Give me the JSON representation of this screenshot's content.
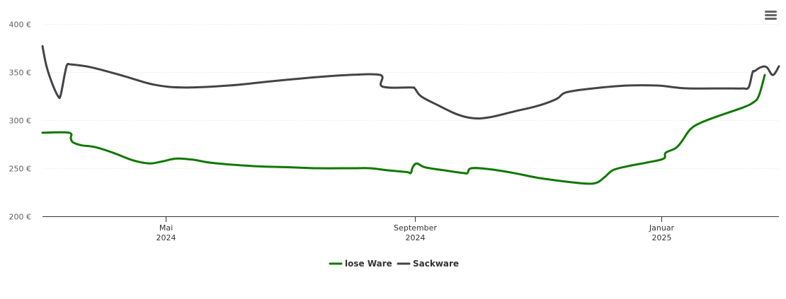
{
  "chart_data": {
    "type": "line",
    "title": "",
    "xlabel": "",
    "ylabel": "",
    "ylim": [
      200,
      400
    ],
    "grid": true,
    "legend_position": "bottom-center",
    "y_ticks": [
      {
        "value": 200,
        "label": "200 €"
      },
      {
        "value": 250,
        "label": "250 €"
      },
      {
        "value": 300,
        "label": "300 €"
      },
      {
        "value": 350,
        "label": "350 €"
      },
      {
        "value": 400,
        "label": "400 €"
      }
    ],
    "x_range": [
      "2024-03-01",
      "2025-02-28"
    ],
    "x_ticks": [
      {
        "date": "2024-05-01",
        "line1": "Mai",
        "line2": "2024"
      },
      {
        "date": "2024-09-01",
        "line1": "September",
        "line2": "2024"
      },
      {
        "date": "2025-01-01",
        "line1": "Januar",
        "line2": "2025"
      }
    ],
    "series": [
      {
        "name": "lose Ware",
        "color": "#107800",
        "points": [
          [
            "2024-03-01",
            287
          ],
          [
            "2024-03-14",
            287
          ],
          [
            "2024-03-15",
            281
          ],
          [
            "2024-03-16",
            277
          ],
          [
            "2024-03-20",
            274
          ],
          [
            "2024-03-27",
            272
          ],
          [
            "2024-04-05",
            266
          ],
          [
            "2024-04-15",
            258
          ],
          [
            "2024-04-23",
            255
          ],
          [
            "2024-04-29",
            257
          ],
          [
            "2024-05-06",
            260
          ],
          [
            "2024-05-14",
            259
          ],
          [
            "2024-05-22",
            256
          ],
          [
            "2024-06-01",
            254
          ],
          [
            "2024-06-15",
            252
          ],
          [
            "2024-07-01",
            251
          ],
          [
            "2024-07-15",
            250
          ],
          [
            "2024-08-01",
            250
          ],
          [
            "2024-08-10",
            250
          ],
          [
            "2024-08-18",
            248
          ],
          [
            "2024-08-28",
            246
          ],
          [
            "2024-08-30",
            245
          ],
          [
            "2024-08-31",
            251
          ],
          [
            "2024-09-02",
            255
          ],
          [
            "2024-09-06",
            251
          ],
          [
            "2024-09-15",
            248
          ],
          [
            "2024-09-25",
            245
          ],
          [
            "2024-09-27",
            245
          ],
          [
            "2024-09-29",
            250
          ],
          [
            "2024-10-08",
            249
          ],
          [
            "2024-10-20",
            245
          ],
          [
            "2024-11-01",
            240
          ],
          [
            "2024-11-15",
            236
          ],
          [
            "2024-11-25",
            234
          ],
          [
            "2024-11-30",
            235
          ],
          [
            "2024-12-04",
            241
          ],
          [
            "2024-12-08",
            248
          ],
          [
            "2024-12-15",
            252
          ],
          [
            "2024-12-25",
            256
          ],
          [
            "2025-01-02",
            260
          ],
          [
            "2025-01-03",
            266
          ],
          [
            "2025-01-08",
            271
          ],
          [
            "2025-01-11",
            278
          ],
          [
            "2025-01-15",
            290
          ],
          [
            "2025-01-20",
            297
          ],
          [
            "2025-01-30",
            305
          ],
          [
            "2025-02-10",
            313
          ],
          [
            "2025-02-15",
            318
          ],
          [
            "2025-02-18",
            325
          ],
          [
            "2025-02-21",
            347
          ]
        ]
      },
      {
        "name": "Sackware",
        "color": "#434348",
        "points": [
          [
            "2024-03-01",
            377
          ],
          [
            "2024-03-03",
            356
          ],
          [
            "2024-03-06",
            337
          ],
          [
            "2024-03-09",
            324
          ],
          [
            "2024-03-10",
            326
          ],
          [
            "2024-03-13",
            357
          ],
          [
            "2024-03-15",
            358
          ],
          [
            "2024-03-25",
            355
          ],
          [
            "2024-04-10",
            346
          ],
          [
            "2024-04-25",
            337
          ],
          [
            "2024-05-10",
            334
          ],
          [
            "2024-06-01",
            336
          ],
          [
            "2024-06-20",
            340
          ],
          [
            "2024-07-10",
            344
          ],
          [
            "2024-07-30",
            347
          ],
          [
            "2024-08-15",
            347
          ],
          [
            "2024-08-16",
            335
          ],
          [
            "2024-08-30",
            334
          ],
          [
            "2024-09-01",
            333
          ],
          [
            "2024-09-04",
            325
          ],
          [
            "2024-09-12",
            316
          ],
          [
            "2024-09-22",
            306
          ],
          [
            "2024-09-30",
            302
          ],
          [
            "2024-10-08",
            303
          ],
          [
            "2024-10-20",
            309
          ],
          [
            "2024-11-01",
            315
          ],
          [
            "2024-11-10",
            322
          ],
          [
            "2024-11-15",
            329
          ],
          [
            "2024-11-28",
            333
          ],
          [
            "2024-12-15",
            336
          ],
          [
            "2024-12-30",
            336
          ],
          [
            "2025-01-08",
            334
          ],
          [
            "2025-01-15",
            333
          ],
          [
            "2025-02-01",
            333
          ],
          [
            "2025-02-10",
            333
          ],
          [
            "2025-02-13",
            334
          ],
          [
            "2025-02-15",
            350
          ],
          [
            "2025-02-16",
            351
          ],
          [
            "2025-02-19",
            355
          ],
          [
            "2025-02-22",
            355
          ],
          [
            "2025-02-25",
            347
          ],
          [
            "2025-02-28",
            356
          ]
        ]
      }
    ]
  }
}
